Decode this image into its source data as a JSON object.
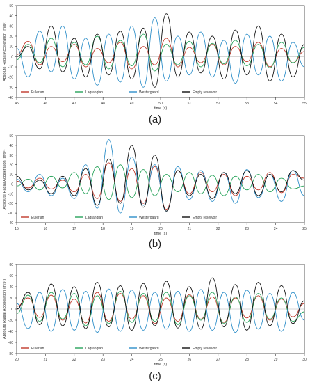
{
  "chart_data": [
    {
      "type": "line",
      "panel_label": "(a)",
      "title": "",
      "xlabel": "time (s)",
      "ylabel": "Absolute Radial Acceleration (m/s²)",
      "xlim": [
        45,
        55
      ],
      "ylim": [
        -40,
        50
      ],
      "x_ticks": [
        "45",
        "46",
        "47",
        "48",
        "49",
        "50",
        "51",
        "52",
        "53",
        "54",
        "55"
      ],
      "y_ticks": [
        "-40",
        "-30",
        "-20",
        "-10",
        "0",
        "10",
        "20",
        "30",
        "40",
        "50"
      ],
      "grid": false,
      "legend_position": "bottom-left",
      "series": [
        {
          "name": "Eulerian",
          "color": "#c0392b",
          "x": [
            45.0,
            45.4,
            45.8,
            46.2,
            46.6,
            47.0,
            47.4,
            47.8,
            48.2,
            48.6,
            49.0,
            49.4,
            49.8,
            50.2,
            50.6,
            51.0,
            51.4,
            51.8,
            52.2,
            52.6,
            53.0,
            53.4,
            53.8,
            54.2,
            54.6,
            55.0
          ],
          "y": [
            2,
            15,
            -8,
            10,
            -5,
            12,
            -10,
            8,
            -6,
            14,
            -12,
            10,
            -8,
            18,
            -10,
            9,
            -6,
            12,
            -8,
            10,
            -5,
            14,
            -10,
            8,
            -6,
            5
          ]
        },
        {
          "name": "Lagrangian",
          "color": "#27a35a",
          "x": [
            45.0,
            45.4,
            45.8,
            46.2,
            46.6,
            47.0,
            47.4,
            47.8,
            48.2,
            48.6,
            49.0,
            49.4,
            49.8,
            50.2,
            50.6,
            51.0,
            51.4,
            51.8,
            52.2,
            52.6,
            53.0,
            53.4,
            53.8,
            54.2,
            54.6,
            55.0
          ],
          "y": [
            -3,
            12,
            -6,
            18,
            -10,
            14,
            -8,
            20,
            -12,
            16,
            -9,
            22,
            -14,
            12,
            -8,
            15,
            -10,
            13,
            -7,
            16,
            -9,
            12,
            -11,
            14,
            -6,
            9
          ]
        },
        {
          "name": "Westergaard",
          "color": "#2e8fc9",
          "x": [
            45.0,
            45.4,
            45.8,
            46.2,
            46.6,
            47.0,
            47.4,
            47.8,
            48.2,
            48.6,
            49.0,
            49.4,
            49.8,
            50.2,
            50.6,
            51.0,
            51.4,
            51.8,
            52.2,
            52.6,
            53.0,
            53.4,
            53.8,
            54.2,
            54.6,
            55.0
          ],
          "y": [
            8,
            -20,
            25,
            -15,
            30,
            -22,
            18,
            -28,
            22,
            -25,
            30,
            -30,
            38,
            -24,
            20,
            -18,
            24,
            -20,
            16,
            -26,
            22,
            -18,
            20,
            -24,
            14,
            -10
          ]
        },
        {
          "name": "Empty reservoir",
          "color": "#111111",
          "x": [
            45.0,
            45.4,
            45.8,
            46.2,
            46.6,
            47.0,
            47.4,
            47.8,
            48.2,
            48.6,
            49.0,
            49.4,
            49.8,
            50.2,
            50.6,
            51.0,
            51.4,
            51.8,
            52.2,
            52.6,
            53.0,
            53.4,
            53.8,
            54.2,
            54.6,
            55.0
          ],
          "y": [
            0,
            10,
            -12,
            30,
            -15,
            18,
            -20,
            22,
            -18,
            25,
            -22,
            28,
            -30,
            42,
            -20,
            24,
            -16,
            20,
            -22,
            26,
            -18,
            30,
            -24,
            22,
            -20,
            12
          ]
        }
      ]
    },
    {
      "type": "line",
      "panel_label": "(b)",
      "title": "",
      "xlabel": "time (s)",
      "ylabel": "Absolute Radial Acceleration (m/s²)",
      "xlim": [
        15,
        25
      ],
      "ylim": [
        -40,
        50
      ],
      "x_ticks": [
        "15",
        "16",
        "17",
        "18",
        "19",
        "20",
        "21",
        "22",
        "23",
        "24",
        "25"
      ],
      "y_ticks": [
        "-40",
        "-30",
        "-20",
        "-10",
        "0",
        "10",
        "20",
        "30",
        "40",
        "50"
      ],
      "grid": false,
      "legend_position": "bottom-left",
      "series": [
        {
          "name": "Eulerian",
          "color": "#c0392b",
          "x": [
            15.0,
            15.4,
            15.8,
            16.2,
            16.6,
            17.0,
            17.4,
            17.8,
            18.2,
            18.6,
            19.0,
            19.4,
            19.8,
            20.2,
            20.6,
            21.0,
            21.4,
            21.8,
            22.2,
            22.6,
            23.0,
            23.4,
            23.8,
            24.2,
            24.6,
            25.0
          ],
          "y": [
            3,
            -4,
            6,
            -5,
            4,
            -8,
            10,
            -15,
            22,
            -18,
            16,
            -20,
            18,
            -26,
            14,
            -10,
            12,
            -8,
            10,
            -12,
            8,
            -6,
            12,
            -9,
            10,
            6
          ]
        },
        {
          "name": "Lagrangian",
          "color": "#27a35a",
          "x": [
            15.0,
            15.4,
            15.8,
            16.2,
            16.6,
            17.0,
            17.4,
            17.8,
            18.2,
            18.6,
            19.0,
            19.4,
            19.8,
            20.2,
            20.6,
            21.0,
            21.4,
            21.8,
            22.2,
            22.6,
            23.0,
            23.4,
            23.8,
            24.2,
            24.6,
            25.0
          ],
          "y": [
            -2,
            5,
            -6,
            8,
            -4,
            12,
            -10,
            18,
            -16,
            20,
            -14,
            15,
            -12,
            10,
            -8,
            12,
            -10,
            9,
            -12,
            8,
            -6,
            10,
            -8,
            6,
            -5,
            -2
          ]
        },
        {
          "name": "Westergaard",
          "color": "#2e8fc9",
          "x": [
            15.0,
            15.4,
            15.8,
            16.2,
            16.6,
            17.0,
            17.4,
            17.8,
            18.2,
            18.6,
            19.0,
            19.4,
            19.8,
            20.2,
            20.6,
            21.0,
            21.4,
            21.8,
            22.2,
            22.6,
            23.0,
            23.4,
            23.8,
            24.2,
            24.6,
            25.0
          ],
          "y": [
            5,
            -8,
            10,
            -12,
            6,
            -15,
            20,
            -25,
            46,
            -30,
            28,
            -22,
            20,
            -28,
            18,
            -16,
            14,
            -18,
            12,
            -20,
            15,
            -14,
            10,
            -18,
            14,
            -12
          ]
        },
        {
          "name": "Empty reservoir",
          "color": "#111111",
          "x": [
            15.0,
            15.4,
            15.8,
            16.2,
            16.6,
            17.0,
            17.4,
            17.8,
            18.2,
            18.6,
            19.0,
            19.4,
            19.8,
            20.2,
            20.6,
            21.0,
            21.4,
            21.8,
            22.2,
            22.6,
            23.0,
            23.4,
            23.8,
            24.2,
            24.6,
            25.0
          ],
          "y": [
            8,
            -6,
            4,
            -10,
            8,
            -12,
            16,
            -22,
            26,
            -20,
            40,
            -24,
            30,
            -28,
            14,
            -12,
            10,
            -15,
            12,
            -10,
            14,
            -12,
            10,
            -8,
            14,
            4
          ]
        }
      ]
    },
    {
      "type": "line",
      "panel_label": "(c)",
      "title": "",
      "xlabel": "time (s)",
      "ylabel": "Absolute Radial Acceleration (m/s²)",
      "xlim": [
        20,
        30
      ],
      "ylim": [
        -80,
        80
      ],
      "x_ticks": [
        "20",
        "21",
        "22",
        "23",
        "24",
        "25",
        "26",
        "27",
        "28",
        "29",
        "30"
      ],
      "y_ticks": [
        "-80",
        "-60",
        "-40",
        "-20",
        "0",
        "20",
        "40",
        "60",
        "80"
      ],
      "grid": false,
      "legend_position": "bottom-left",
      "series": [
        {
          "name": "Eulerian",
          "color": "#c0392b",
          "x": [
            20.0,
            20.4,
            20.8,
            21.2,
            21.6,
            22.0,
            22.4,
            22.8,
            23.2,
            23.6,
            24.0,
            24.4,
            24.8,
            25.2,
            25.6,
            26.0,
            26.4,
            26.8,
            27.2,
            27.6,
            28.0,
            28.4,
            28.8,
            29.2,
            29.6,
            30.0
          ],
          "y": [
            5,
            20,
            -15,
            25,
            -20,
            18,
            -25,
            30,
            -22,
            28,
            -18,
            24,
            -26,
            20,
            -22,
            26,
            -18,
            22,
            -24,
            20,
            -16,
            24,
            -20,
            18,
            -14,
            10
          ]
        },
        {
          "name": "Lagrangian",
          "color": "#27a35a",
          "x": [
            20.0,
            20.4,
            20.8,
            21.2,
            21.6,
            22.0,
            22.4,
            22.8,
            23.2,
            23.6,
            24.0,
            24.4,
            24.8,
            25.2,
            25.6,
            26.0,
            26.4,
            26.8,
            27.2,
            27.6,
            28.0,
            28.4,
            28.8,
            29.2,
            29.6,
            30.0
          ],
          "y": [
            -8,
            25,
            -22,
            30,
            -18,
            28,
            -30,
            24,
            -26,
            32,
            -24,
            28,
            -22,
            30,
            -28,
            24,
            -20,
            30,
            -26,
            22,
            -24,
            28,
            -18,
            20,
            -22,
            -5
          ]
        },
        {
          "name": "Westergaard",
          "color": "#2e8fc9",
          "x": [
            20.0,
            20.4,
            20.8,
            21.2,
            21.6,
            22.0,
            22.4,
            22.8,
            23.2,
            23.6,
            24.0,
            24.4,
            24.8,
            25.2,
            25.6,
            26.0,
            26.4,
            26.8,
            27.2,
            27.6,
            28.0,
            28.4,
            28.8,
            29.2,
            29.6,
            30.0
          ],
          "y": [
            10,
            -35,
            30,
            -40,
            35,
            -38,
            32,
            -42,
            36,
            -40,
            34,
            -38,
            30,
            -36,
            32,
            -40,
            35,
            -38,
            30,
            -42,
            34,
            -36,
            28,
            -40,
            30,
            -20
          ]
        },
        {
          "name": "Empty reservoir",
          "color": "#111111",
          "x": [
            20.0,
            20.4,
            20.8,
            21.2,
            21.6,
            22.0,
            22.4,
            22.8,
            23.2,
            23.6,
            24.0,
            24.4,
            24.8,
            25.2,
            25.6,
            26.0,
            26.4,
            26.8,
            27.2,
            27.6,
            28.0,
            28.4,
            28.8,
            29.2,
            29.6,
            30.0
          ],
          "y": [
            0,
            30,
            -28,
            45,
            -30,
            40,
            -35,
            48,
            -32,
            42,
            -38,
            46,
            -30,
            50,
            -34,
            40,
            -36,
            56,
            -32,
            44,
            -38,
            48,
            -30,
            42,
            -26,
            15
          ]
        }
      ]
    }
  ]
}
